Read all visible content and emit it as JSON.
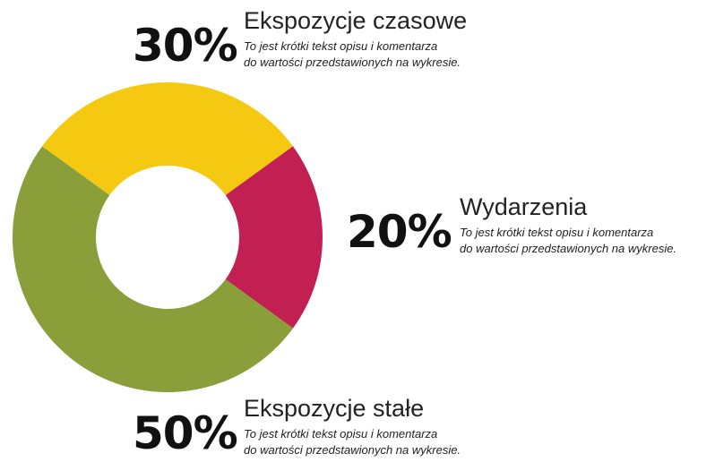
{
  "chart_data": {
    "type": "donut",
    "categories": [
      "Ekspozycje czasowe",
      "Wydarzenia",
      "Ekspozycje stałe"
    ],
    "values": [
      30,
      20,
      50
    ],
    "value_labels": [
      "30%",
      "20%",
      "50%"
    ],
    "colors": [
      "#f5c912",
      "#c21f52",
      "#8a9e3a"
    ],
    "descriptions": [
      [
        "To jest krótki tekst opisu i komentarza",
        "do wartości przedstawionych na wykresie."
      ],
      [
        "To jest krótki tekst opisu i komentarza",
        "do wartości przedstawionych na wykresie."
      ],
      [
        "To jest krótki tekst opisu i komentarza",
        "do wartości przedstawionych na wykresie."
      ]
    ]
  }
}
